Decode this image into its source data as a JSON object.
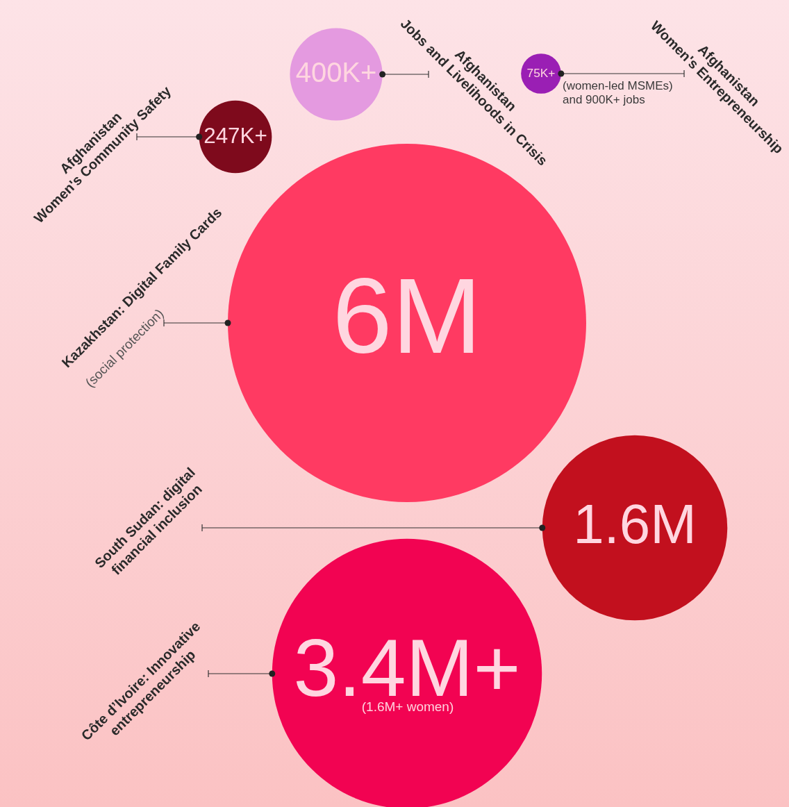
{
  "chart_data": {
    "type": "other",
    "categories": [
      "Afghanistan\nWomen's Community Safety",
      "Afghanistan\nJobs and Livelihoods in Crisis",
      "Afghanistan\nWomen's Entrepreneurship",
      "Kazakhstan: Digital Family Cards",
      "South Sudan: digital\nfinancial inclusion",
      "Côte d’Ivoire: Innovative\nentrepreneurship"
    ],
    "values": [
      247000,
      400000,
      75000,
      6000000,
      1600000,
      3400000
    ],
    "value_labels": [
      "247K+",
      "400K+",
      "75K+",
      "6M",
      "1.6M",
      "3.4M+"
    ],
    "colors": [
      "#7e0a1c",
      "#e49ae0",
      "#9a1fb4",
      "#ff3a62",
      "#c2101e",
      "#f20352"
    ],
    "annotations": [
      "(women-led MSMEs)\nand 900K+ jobs",
      "(1.6M+ women)",
      "(social protection)"
    ]
  }
}
